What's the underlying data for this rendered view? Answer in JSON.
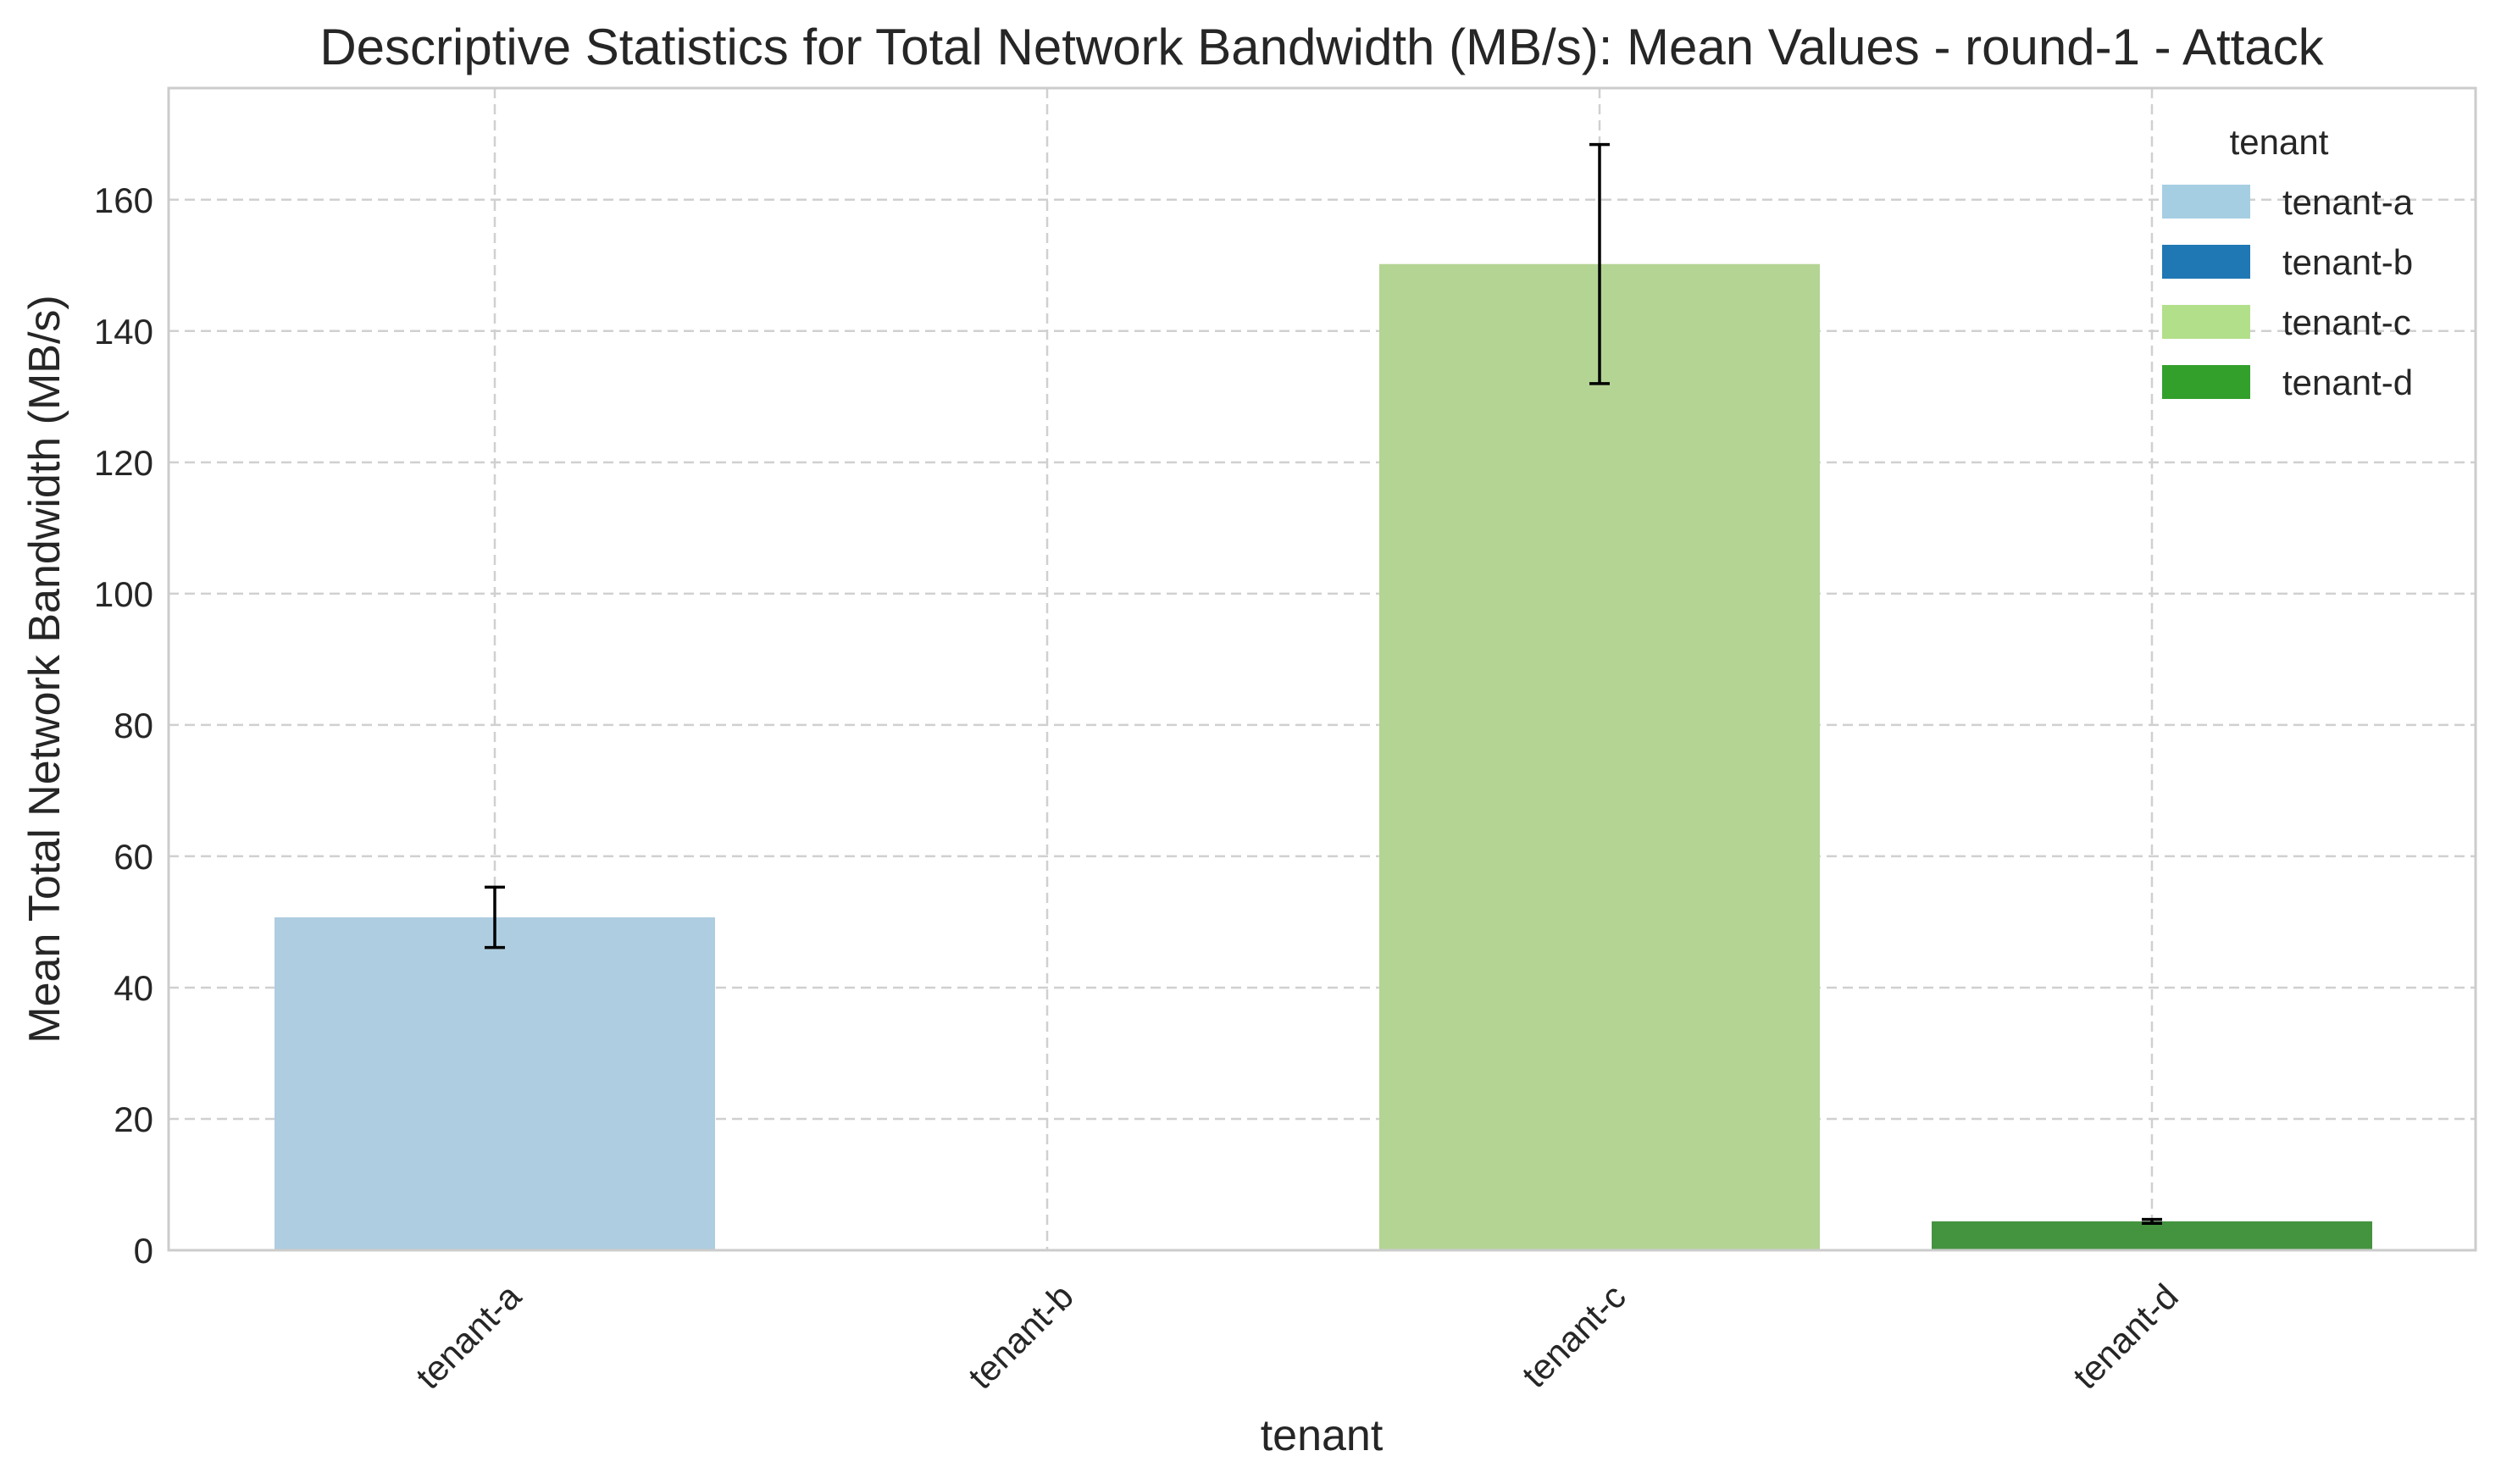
{
  "chart_data": {
    "type": "bar",
    "title": "Descriptive Statistics for Total Network Bandwidth (MB/s): Mean Values - round-1 - Attack",
    "xlabel": "tenant",
    "ylabel": "Mean Total Network Bandwidth (MB/s)",
    "categories": [
      "tenant-a",
      "tenant-b",
      "tenant-c",
      "tenant-d"
    ],
    "values": [
      50.7,
      0,
      150.2,
      4.4
    ],
    "error": [
      4.6,
      0,
      18.2,
      0.3
    ],
    "bar_colors": [
      "#aecde0",
      "#1f78b4",
      "#b4d494",
      "#44943f"
    ],
    "ylim": [
      0,
      177
    ],
    "yticks": [
      0,
      20,
      40,
      60,
      80,
      100,
      120,
      140,
      160
    ],
    "grid": true,
    "legend": {
      "title": "tenant",
      "placement": "top-right",
      "entries": [
        {
          "label": "tenant-a",
          "color": "#a6cee3"
        },
        {
          "label": "tenant-b",
          "color": "#1f78b4"
        },
        {
          "label": "tenant-c",
          "color": "#b2df8a"
        },
        {
          "label": "tenant-d",
          "color": "#33a02c"
        }
      ]
    }
  }
}
